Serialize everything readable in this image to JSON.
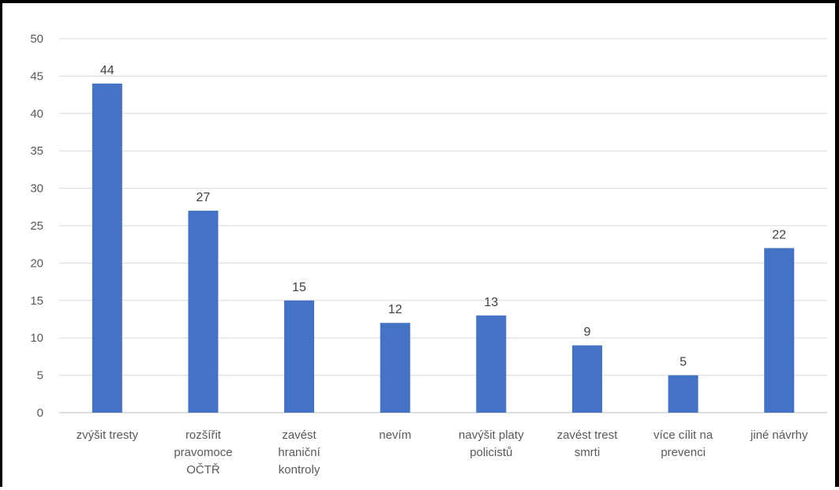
{
  "chart_data": {
    "type": "bar",
    "title": "",
    "xlabel": "",
    "ylabel": "",
    "categories": [
      [
        "zvýšit tresty"
      ],
      [
        "rozšířit",
        "pravomoce",
        "OČTŘ"
      ],
      [
        "zavést",
        "hraniční",
        "kontroly"
      ],
      [
        "nevím"
      ],
      [
        "navýšit platy",
        "policistů"
      ],
      [
        "zavést trest",
        "smrti"
      ],
      [
        "více cílit na",
        "prevenci"
      ],
      [
        "jiné návrhy"
      ]
    ],
    "values": [
      44,
      27,
      15,
      12,
      13,
      9,
      5,
      22
    ],
    "data_labels": [
      "44",
      "27",
      "15",
      "12",
      "13",
      "9",
      "5",
      "22"
    ],
    "ylim": [
      0,
      50
    ],
    "yticks": [
      "0",
      "5",
      "10",
      "15",
      "20",
      "25",
      "30",
      "35",
      "40",
      "45",
      "50"
    ],
    "grid": true,
    "legend": "none",
    "colors": {
      "bar": "#4472C4",
      "grid": "#D9D9D9",
      "axis": "#BFBFBF",
      "tick_text": "#595959",
      "label_text": "#404040",
      "frame": "#000000"
    }
  }
}
